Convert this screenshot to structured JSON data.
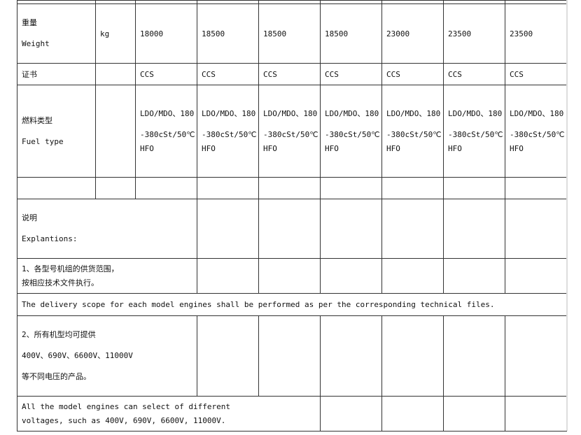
{
  "weight": {
    "label_cn": "重量",
    "label_en": "Weight",
    "unit": "kg",
    "values": [
      "18000",
      "18500",
      "18500",
      "18500",
      "23000",
      "23500",
      "23500"
    ]
  },
  "certificate": {
    "label_cn": "证书",
    "values": [
      "CCS",
      "CCS",
      "CCS",
      "CCS",
      "CCS",
      "CCS",
      "CCS"
    ]
  },
  "fuel": {
    "label_cn": "燃料类型",
    "label_en": "Fuel type",
    "line1": "LDO/MDO、180",
    "line2": "-380cSt/50℃",
    "line3": "HFO"
  },
  "explanations": {
    "title_cn": "说明",
    "title_en": "Explantions:",
    "note1_cn_line1": "1、各型号机组的供货范围，",
    "note1_cn_line2": "按相应技术文件执行。",
    "note1_en": "The delivery scope for each model engines shall be performed as per the corresponding technical files.",
    "note2_cn_line1": "2、所有机型均可提供",
    "note2_cn_line2": "400V、690V、6600V、11000V",
    "note2_cn_line3": "等不同电压的产品。",
    "note2_en_line1": "All the model engines can select of different",
    "note2_en_line2": "voltages, such as 400V, 690V, 6600V, 11000V."
  }
}
